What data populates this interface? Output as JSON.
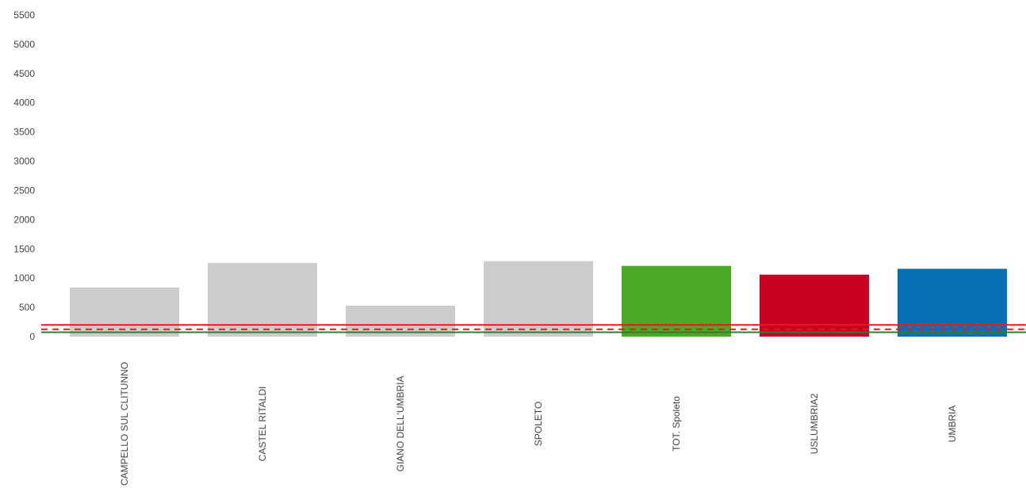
{
  "chart_data": {
    "type": "bar",
    "categories": [
      "CAMPELLO SUL CLITUNNO",
      "CASTEL RITALDI",
      "GIANO DELL'UMBRIA",
      "SPOLETO",
      "TOT. Spoleto",
      "USLUMBRIA2",
      "UMBRIA"
    ],
    "values": [
      840,
      1260,
      530,
      1290,
      1210,
      1060,
      1160
    ],
    "colors": [
      "#cccccc",
      "#cccccc",
      "#cccccc",
      "#cccccc",
      "#4aaa27",
      "#c80022",
      "#0770b4"
    ],
    "ylim": [
      0,
      5500
    ],
    "yticks": [
      "0",
      "500",
      "1000",
      "1500",
      "2000",
      "2500",
      "3000",
      "3500",
      "4000",
      "4500",
      "5000",
      "5500"
    ],
    "reference_lines": [
      {
        "value": 200,
        "color": "#e31b1b",
        "style": "solid"
      },
      {
        "value": 125,
        "color": "#e31b1b",
        "style": "dashed"
      },
      {
        "value": 75,
        "color": "#2e7d32",
        "style": "solid"
      }
    ],
    "title": "",
    "xlabel": "",
    "ylabel": "",
    "grid": false,
    "legend": false
  }
}
